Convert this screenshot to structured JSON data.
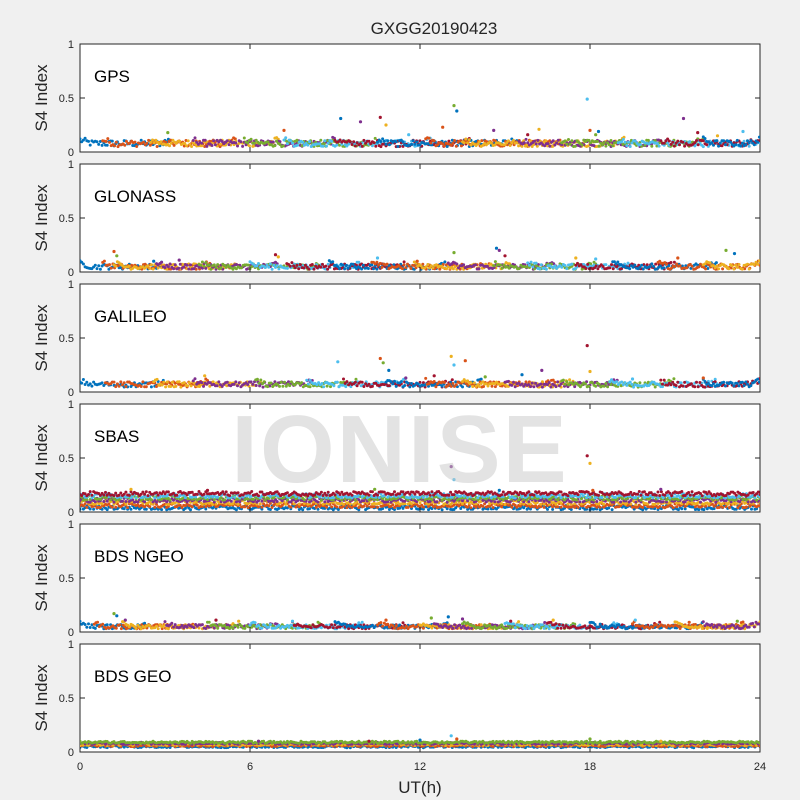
{
  "watermark": "IONISE",
  "chart_data": {
    "type": "scatter",
    "title": "GXGG20190423",
    "xlabel": "UT(h)",
    "ylabel": "S4 Index",
    "xlim": [
      0,
      24
    ],
    "ylim": [
      0,
      1
    ],
    "xticks": [
      0,
      6,
      12,
      18,
      24
    ],
    "xtick_labels": [
      "0",
      "6",
      "12",
      "18",
      "24"
    ],
    "yticks": [
      0,
      0.5,
      1
    ],
    "ytick_labels": [
      "0",
      "0.5",
      "1"
    ],
    "grid": false,
    "colors": [
      "#0072bd",
      "#d95319",
      "#edb120",
      "#7e2f8e",
      "#77ac30",
      "#4dbeee",
      "#a2142f"
    ],
    "panels": [
      {
        "label": "GPS",
        "base": 0.08,
        "spread": 0.03,
        "tracks": [
          [
            0,
            3.2
          ],
          [
            0.8,
            5.5
          ],
          [
            2.5,
            7.0
          ],
          [
            4.0,
            9.0
          ],
          [
            5.8,
            10.5
          ],
          [
            7.2,
            12.5
          ],
          [
            9.0,
            13.8
          ],
          [
            10.5,
            15.5
          ],
          [
            12.2,
            17.0
          ],
          [
            13.5,
            19.2
          ],
          [
            15.5,
            20.5
          ],
          [
            17.0,
            22.0
          ],
          [
            19.0,
            24.0
          ],
          [
            20.5,
            24.0
          ],
          [
            22.0,
            24.0
          ]
        ],
        "outliers": [
          [
            9.2,
            0.31
          ],
          [
            9.9,
            0.28
          ],
          [
            10.6,
            0.32
          ],
          [
            10.8,
            0.25
          ],
          [
            11.6,
            0.16
          ],
          [
            12.8,
            0.23
          ],
          [
            13.2,
            0.43
          ],
          [
            13.3,
            0.38
          ],
          [
            14.6,
            0.2
          ],
          [
            15.8,
            0.16
          ],
          [
            16.2,
            0.21
          ],
          [
            17.9,
            0.49
          ],
          [
            18.0,
            0.2
          ],
          [
            18.2,
            0.16
          ],
          [
            18.3,
            0.19
          ],
          [
            21.3,
            0.31
          ],
          [
            21.8,
            0.18
          ],
          [
            22.5,
            0.15
          ],
          [
            23.4,
            0.19
          ],
          [
            7.2,
            0.2
          ],
          [
            3.1,
            0.18
          ]
        ]
      },
      {
        "label": "GLONASS",
        "base": 0.05,
        "spread": 0.025,
        "tracks": [
          [
            0,
            3.0
          ],
          [
            0.8,
            4.6
          ],
          [
            1.2,
            5.6
          ],
          [
            2.7,
            7.0
          ],
          [
            4.2,
            8.5
          ],
          [
            6.0,
            9.9
          ],
          [
            7.3,
            11.5
          ],
          [
            8.8,
            13.0
          ],
          [
            10.3,
            14.5
          ],
          [
            11.8,
            15.2
          ],
          [
            13.0,
            16.8
          ],
          [
            14.6,
            18.2
          ],
          [
            15.8,
            19.5
          ],
          [
            17.5,
            21.0
          ],
          [
            18.8,
            22.5
          ],
          [
            20.4,
            24.0
          ],
          [
            22.0,
            24.0
          ]
        ],
        "outliers": [
          [
            1.2,
            0.19
          ],
          [
            1.3,
            0.15
          ],
          [
            2.6,
            0.1
          ],
          [
            3.5,
            0.11
          ],
          [
            6.9,
            0.16
          ],
          [
            7.0,
            0.14
          ],
          [
            10.5,
            0.13
          ],
          [
            11.9,
            0.1
          ],
          [
            13.2,
            0.18
          ],
          [
            14.7,
            0.22
          ],
          [
            14.8,
            0.2
          ],
          [
            15.0,
            0.15
          ],
          [
            17.5,
            0.13
          ],
          [
            18.2,
            0.12
          ],
          [
            21.1,
            0.13
          ],
          [
            22.8,
            0.2
          ],
          [
            23.1,
            0.17
          ]
        ]
      },
      {
        "label": "GALILEO",
        "base": 0.07,
        "spread": 0.025,
        "tracks": [
          [
            0,
            3.0
          ],
          [
            0.9,
            4.5
          ],
          [
            2.6,
            6.5
          ],
          [
            4.0,
            8.2
          ],
          [
            6.2,
            9.8
          ],
          [
            8.0,
            11.5
          ],
          [
            9.3,
            13.2
          ],
          [
            10.8,
            14.2
          ],
          [
            12.2,
            16.8
          ],
          [
            13.5,
            17.4
          ],
          [
            15.0,
            19.0
          ],
          [
            17.0,
            21.0
          ],
          [
            18.7,
            22.5
          ],
          [
            20.5,
            24.0
          ],
          [
            22.0,
            24.0
          ]
        ],
        "outliers": [
          [
            4.4,
            0.15
          ],
          [
            9.1,
            0.28
          ],
          [
            10.6,
            0.31
          ],
          [
            10.7,
            0.27
          ],
          [
            10.9,
            0.2
          ],
          [
            11.5,
            0.13
          ],
          [
            12.5,
            0.15
          ],
          [
            13.1,
            0.33
          ],
          [
            13.2,
            0.25
          ],
          [
            13.6,
            0.29
          ],
          [
            14.3,
            0.14
          ],
          [
            15.6,
            0.16
          ],
          [
            16.3,
            0.2
          ],
          [
            17.9,
            0.43
          ],
          [
            18.0,
            0.19
          ],
          [
            19.5,
            0.12
          ],
          [
            22.0,
            0.13
          ]
        ]
      },
      {
        "label": "SBAS",
        "base": 0.1,
        "spread": 0.02,
        "tracks": [
          [
            0,
            24.0
          ],
          [
            0,
            24.0
          ],
          [
            0,
            24.0
          ],
          [
            0,
            24.0
          ],
          [
            0,
            24.0
          ],
          [
            0,
            24.0
          ],
          [
            0,
            24.0
          ]
        ],
        "levels": [
          0.04,
          0.06,
          0.09,
          0.11,
          0.13,
          0.15,
          0.17
        ],
        "outliers": [
          [
            13.1,
            0.42
          ],
          [
            17.9,
            0.52
          ],
          [
            18.0,
            0.45
          ],
          [
            13.2,
            0.3
          ],
          [
            18.1,
            0.2
          ],
          [
            10.4,
            0.21
          ],
          [
            14.8,
            0.2
          ],
          [
            20.5,
            0.21
          ],
          [
            4.5,
            0.2
          ],
          [
            1.8,
            0.21
          ]
        ]
      },
      {
        "label": "BDS NGEO",
        "base": 0.05,
        "spread": 0.02,
        "tracks": [
          [
            0,
            2.5
          ],
          [
            0.5,
            4.0
          ],
          [
            1.5,
            5.5
          ],
          [
            3.0,
            7.0
          ],
          [
            4.5,
            8.5
          ],
          [
            6.0,
            10.0
          ],
          [
            7.5,
            11.5
          ],
          [
            9.0,
            13.0
          ],
          [
            10.5,
            14.5
          ],
          [
            12.0,
            15.5
          ],
          [
            12.5,
            16.5
          ],
          [
            13.5,
            17.5
          ],
          [
            15.0,
            19.0
          ],
          [
            16.5,
            20.5
          ],
          [
            18.0,
            22.0
          ],
          [
            19.5,
            23.5
          ],
          [
            21.0,
            24.0
          ],
          [
            22.0,
            24.0
          ]
        ],
        "outliers": [
          [
            1.2,
            0.17
          ],
          [
            1.3,
            0.15
          ],
          [
            1.6,
            0.11
          ],
          [
            4.8,
            0.11
          ],
          [
            5.6,
            0.1
          ],
          [
            7.5,
            0.1
          ],
          [
            10.8,
            0.11
          ],
          [
            12.4,
            0.13
          ],
          [
            13.0,
            0.14
          ],
          [
            13.5,
            0.12
          ],
          [
            15.2,
            0.1
          ],
          [
            16.7,
            0.11
          ],
          [
            19.6,
            0.11
          ],
          [
            21.5,
            0.09
          ],
          [
            23.2,
            0.1
          ]
        ]
      },
      {
        "label": "BDS GEO",
        "base": 0.07,
        "spread": 0.01,
        "tracks": [
          [
            0,
            24.0
          ],
          [
            0,
            24.0
          ],
          [
            0,
            24.0
          ],
          [
            0,
            24.0
          ],
          [
            0,
            24.0
          ]
        ],
        "levels": [
          0.05,
          0.06,
          0.07,
          0.08,
          0.09
        ],
        "outliers": [
          [
            13.1,
            0.15
          ],
          [
            13.3,
            0.12
          ],
          [
            18.0,
            0.12
          ],
          [
            12.0,
            0.11
          ],
          [
            6.3,
            0.1
          ],
          [
            10.2,
            0.1
          ],
          [
            20.5,
            0.1
          ]
        ]
      }
    ]
  }
}
